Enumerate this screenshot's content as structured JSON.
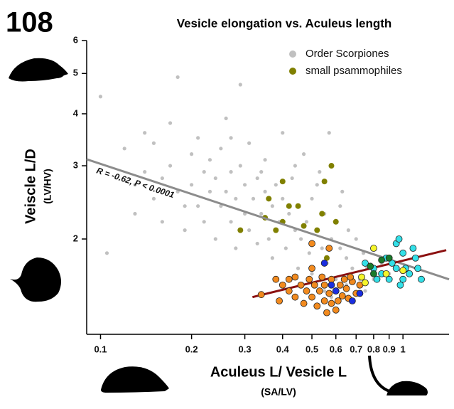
{
  "figure_label": "108",
  "chart_data": {
    "type": "scatter",
    "title": "Vesicle elongation vs. Aculeus length",
    "xlabel": "Aculeus L/ Vesicle L",
    "xlabel_sub": "(SA/LV)",
    "ylabel": "Veiscle L/D",
    "ylabel_sub": "(LV/HV)",
    "annotation": "R = -0.62, P < 0.0001",
    "xscale": "log",
    "yscale": "log",
    "xlim": [
      0.09,
      1.42
    ],
    "ylim": [
      1.18,
      6
    ],
    "xticks": [
      0.1,
      0.2,
      0.3,
      0.4,
      0.5,
      0.6,
      0.7,
      0.8,
      0.9,
      1
    ],
    "yticks": [
      2,
      3,
      4,
      5,
      6
    ],
    "legend": "upper right",
    "series": [
      {
        "name": "Order Scorpiones",
        "color": "#c0c0c0",
        "x": [
          0.1,
          0.12,
          0.105,
          0.13,
          0.14,
          0.15,
          0.15,
          0.16,
          0.17,
          0.17,
          0.18,
          0.18,
          0.19,
          0.2,
          0.2,
          0.21,
          0.21,
          0.22,
          0.22,
          0.23,
          0.23,
          0.24,
          0.24,
          0.25,
          0.25,
          0.26,
          0.26,
          0.27,
          0.27,
          0.28,
          0.28,
          0.29,
          0.29,
          0.3,
          0.3,
          0.31,
          0.31,
          0.32,
          0.33,
          0.33,
          0.34,
          0.35,
          0.35,
          0.36,
          0.37,
          0.37,
          0.38,
          0.39,
          0.4,
          0.4,
          0.41,
          0.42,
          0.43,
          0.44,
          0.45,
          0.45,
          0.46,
          0.47,
          0.48,
          0.49,
          0.5,
          0.5,
          0.52,
          0.53,
          0.54,
          0.55,
          0.56,
          0.57,
          0.58,
          0.6,
          0.6,
          0.62,
          0.63,
          0.65,
          0.66,
          0.68,
          0.7,
          0.72,
          0.74,
          0.76,
          0.8,
          0.85,
          0.9,
          0.55,
          0.65,
          0.58,
          0.75,
          0.19,
          0.16,
          0.13,
          0.14,
          0.27,
          0.34,
          0.44,
          0.52,
          0.62
        ],
        "y": [
          4.4,
          3.3,
          1.85,
          2.7,
          2.9,
          2.5,
          3.4,
          2.2,
          3.0,
          3.8,
          2.6,
          4.9,
          2.1,
          3.2,
          2.7,
          2.4,
          3.5,
          2.9,
          2.2,
          2.6,
          3.1,
          2.0,
          2.8,
          3.3,
          2.4,
          2.6,
          3.9,
          2.2,
          2.9,
          1.9,
          2.5,
          3.0,
          4.7,
          2.3,
          2.7,
          2.1,
          3.4,
          2.5,
          1.95,
          2.8,
          2.3,
          2.6,
          3.1,
          2.0,
          2.4,
          1.8,
          2.7,
          2.2,
          2.5,
          3.6,
          1.9,
          2.3,
          2.8,
          2.1,
          1.7,
          2.4,
          2.0,
          3.2,
          2.2,
          1.85,
          2.5,
          1.65,
          2.1,
          2.9,
          1.9,
          2.3,
          1.75,
          3.6,
          2.0,
          2.2,
          1.6,
          1.9,
          2.6,
          1.8,
          2.1,
          1.7,
          2.0,
          1.6,
          1.85,
          1.7,
          1.6,
          1.75,
          1.65,
          1.5,
          1.55,
          1.45,
          1.5,
          2.4,
          2.8,
          2.3,
          3.6,
          3.5,
          2.9,
          3.0,
          2.7,
          2.4
        ]
      },
      {
        "name": "small psammophiles",
        "color": "#808000",
        "x": [
          0.29,
          0.35,
          0.36,
          0.4,
          0.42,
          0.45,
          0.4,
          0.38,
          0.47,
          0.55,
          0.58,
          0.54,
          0.52,
          0.6,
          0.56
        ],
        "y": [
          2.1,
          2.25,
          2.5,
          2.75,
          2.4,
          2.4,
          2.2,
          2.1,
          2.15,
          2.75,
          3.0,
          2.3,
          2.1,
          2.2,
          1.8
        ]
      },
      {
        "color": "#f28a1e",
        "edgecolor": "#222222",
        "x": [
          0.38,
          0.4,
          0.42,
          0.42,
          0.44,
          0.44,
          0.46,
          0.47,
          0.48,
          0.49,
          0.5,
          0.5,
          0.51,
          0.52,
          0.53,
          0.54,
          0.55,
          0.55,
          0.56,
          0.57,
          0.58,
          0.58,
          0.6,
          0.61,
          0.62,
          0.63,
          0.65,
          0.66,
          0.68,
          0.7,
          0.72,
          0.34,
          0.39,
          0.5,
          0.57,
          0.64,
          0.6,
          0.67
        ],
        "y": [
          1.6,
          1.55,
          1.6,
          1.5,
          1.45,
          1.62,
          1.55,
          1.4,
          1.5,
          1.6,
          1.45,
          1.7,
          1.55,
          1.38,
          1.5,
          1.62,
          1.42,
          1.55,
          1.33,
          1.48,
          1.6,
          1.4,
          1.5,
          1.42,
          1.55,
          1.46,
          1.52,
          1.44,
          1.58,
          1.48,
          1.55,
          1.47,
          1.42,
          1.95,
          1.9,
          1.6,
          1.35,
          1.62
        ]
      },
      {
        "color": "#33e0e8",
        "edgecolor": "#222222",
        "x": [
          0.75,
          0.8,
          0.85,
          0.88,
          0.92,
          0.95,
          0.97,
          1.0,
          1.02,
          1.05,
          1.1,
          1.12,
          1.15,
          0.98,
          1.0,
          0.9,
          0.82,
          1.08,
          0.95
        ],
        "y": [
          1.75,
          1.7,
          1.65,
          1.8,
          1.75,
          1.95,
          2.0,
          1.85,
          1.7,
          1.65,
          1.8,
          1.7,
          1.6,
          1.55,
          1.6,
          1.6,
          1.6,
          1.9,
          1.7
        ]
      },
      {
        "color": "#f5f52a",
        "edgecolor": "#222222",
        "x": [
          0.73,
          0.8,
          0.88,
          1.0,
          0.75
        ],
        "y": [
          1.62,
          1.9,
          1.65,
          1.68,
          1.57
        ]
      },
      {
        "color": "#1a7a2a",
        "edgecolor": "#222222",
        "x": [
          0.78,
          0.85,
          0.9,
          0.8
        ],
        "y": [
          1.72,
          1.78,
          1.8,
          1.65
        ]
      },
      {
        "color": "#1a2ee0",
        "edgecolor": "#222222",
        "x": [
          0.55,
          0.58,
          0.68,
          0.72,
          0.6
        ],
        "y": [
          1.75,
          1.55,
          1.42,
          1.48,
          1.5
        ]
      }
    ],
    "lines": [
      {
        "color": "#8c8c8c",
        "x": [
          0.09,
          1.42
        ],
        "y": [
          3.11,
          1.6
        ]
      },
      {
        "color": "#8b1010",
        "x": [
          0.318,
          1.39
        ],
        "y": [
          1.45,
          1.88
        ]
      }
    ]
  }
}
